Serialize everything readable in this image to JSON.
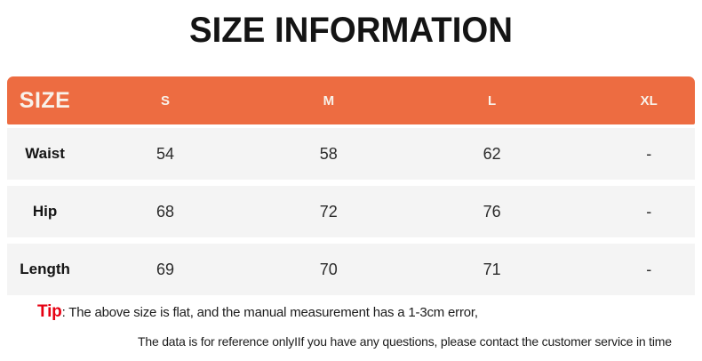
{
  "page": {
    "title": "SIZE INFORMATION"
  },
  "table": {
    "header": {
      "label": "SIZE",
      "sizes": [
        "S",
        "M",
        "L",
        "XL"
      ]
    },
    "rows": [
      {
        "label": "Waist",
        "values": [
          "54",
          "58",
          "62",
          "-"
        ]
      },
      {
        "label": "Hip",
        "values": [
          "68",
          "72",
          "76",
          "-"
        ]
      },
      {
        "label": "Length",
        "values": [
          "69",
          "70",
          "71",
          "-"
        ]
      }
    ]
  },
  "tip": {
    "label": "Tip",
    "line1": ": The above size is flat, and the manual measurement has a 1-3cm error,",
    "line2": "The data is for reference onlyIIf you have any questions, please contact the customer service in time"
  },
  "colors": {
    "accent_orange": "#ED6C41",
    "row_background": "#F4F4F4",
    "tip_red": "#E60012"
  },
  "chart_data": {
    "type": "table",
    "title": "SIZE INFORMATION",
    "columns": [
      "SIZE",
      "S",
      "M",
      "L",
      "XL"
    ],
    "rows": [
      [
        "Waist",
        "54",
        "58",
        "62",
        "-"
      ],
      [
        "Hip",
        "68",
        "72",
        "76",
        "-"
      ],
      [
        "Length",
        "69",
        "70",
        "71",
        "-"
      ]
    ],
    "units": "cm",
    "notes": [
      "Tip: The above size is flat, and the manual measurement has a 1-3cm error,",
      "The data is for reference onlyIIf you have any questions, please contact the customer service in time"
    ]
  }
}
